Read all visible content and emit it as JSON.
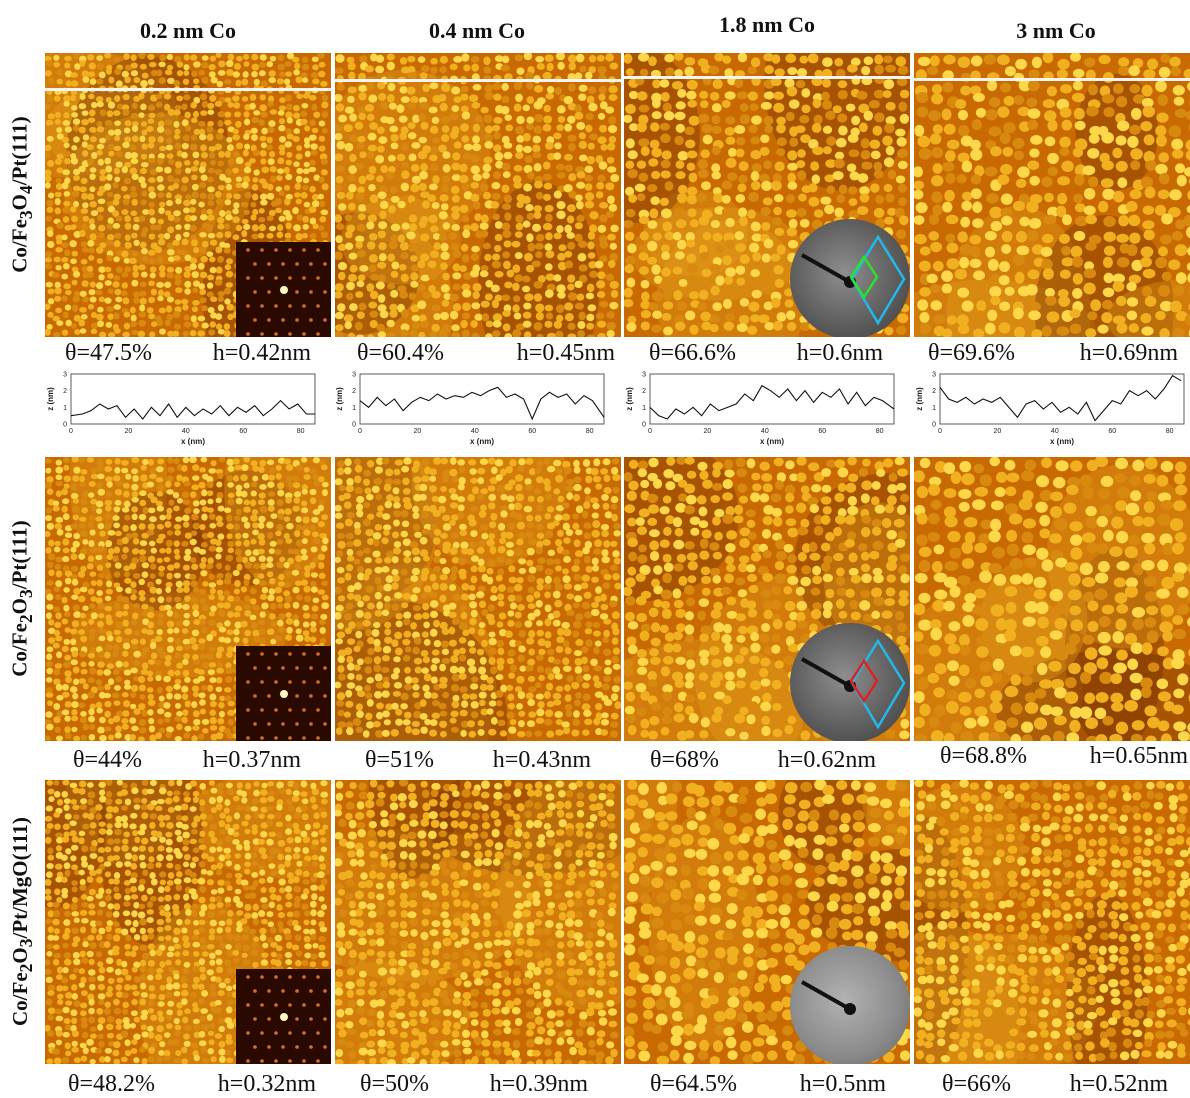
{
  "columns": [
    "0.2 nm Co",
    "0.4 nm Co",
    "1.8 nm Co",
    "3 nm Co"
  ],
  "rows": [
    {
      "label_main": "Co/Fe",
      "label_sub1": "3",
      "label_mid": "O",
      "label_sub2": "4",
      "label_end": "/Pt(111)",
      "captions": [
        [
          "θ=47.5%",
          "h=0.42nm"
        ],
        [
          "θ=60.4%",
          "h=0.45nm"
        ],
        [
          "θ=66.6%",
          "h=0.6nm"
        ],
        [
          "θ=69.6%",
          "h=0.69nm"
        ]
      ]
    },
    {
      "label_main": "Co/Fe",
      "label_sub1": "2",
      "label_mid": "O",
      "label_sub2": "3",
      "label_end": "/Pt(111)",
      "captions": [
        [
          "θ=44%",
          "h=0.37nm"
        ],
        [
          "θ=51%",
          "h=0.43nm"
        ],
        [
          "θ=68%",
          "h=0.62nm"
        ],
        [
          "θ=68.8%",
          "h=0.65nm"
        ]
      ]
    },
    {
      "label_main": "Co/Fe",
      "label_sub1": "2",
      "label_mid": "O",
      "label_sub2": "3",
      "label_end": "/Pt/MgO(111)",
      "captions": [
        [
          "θ=48.2%",
          "h=0.32nm"
        ],
        [
          "θ=50%",
          "h=0.39nm"
        ],
        [
          "θ=64.5%",
          "h=0.5nm"
        ],
        [
          "θ=66%",
          "h=0.52nm"
        ]
      ]
    }
  ],
  "colors": {
    "stm_dark": "#6b2800",
    "stm_mid": "#c86a00",
    "stm_light": "#ffd84a",
    "scan_line": "#f4f4f4",
    "unit_cell_cyan": "#22b8e8",
    "unit_cell_green": "#2ee02e",
    "unit_cell_red": "#e02020"
  },
  "chart_data": [
    {
      "type": "line",
      "xlabel": "x (nm)",
      "ylabel": "z (nm)",
      "xlim": [
        0,
        85
      ],
      "ylim": [
        0,
        3
      ],
      "xticks": [
        "0",
        "20",
        "40",
        "60",
        "80"
      ],
      "yticks": [
        "0",
        "1",
        "2",
        "3"
      ],
      "x": [
        0,
        4,
        7,
        10,
        13,
        16,
        19,
        22,
        25,
        28,
        31,
        34,
        37,
        40,
        43,
        46,
        49,
        52,
        55,
        58,
        61,
        64,
        67,
        70,
        73,
        76,
        79,
        82,
        85
      ],
      "y": [
        0.5,
        0.6,
        0.8,
        1.2,
        0.9,
        1.1,
        0.4,
        0.9,
        0.3,
        1.0,
        0.5,
        1.2,
        0.4,
        1.0,
        0.5,
        0.9,
        0.6,
        1.1,
        0.5,
        1.0,
        0.7,
        1.1,
        0.5,
        0.9,
        1.4,
        0.9,
        1.2,
        0.6,
        0.6
      ]
    },
    {
      "type": "line",
      "xlabel": "x (nm)",
      "ylabel": "z (nm)",
      "xlim": [
        0,
        85
      ],
      "ylim": [
        0,
        3
      ],
      "xticks": [
        "0",
        "20",
        "40",
        "60",
        "80"
      ],
      "yticks": [
        "0",
        "1",
        "2",
        "3"
      ],
      "x": [
        0,
        3,
        6,
        9,
        12,
        15,
        18,
        21,
        24,
        27,
        30,
        33,
        36,
        39,
        42,
        45,
        48,
        51,
        54,
        57,
        60,
        63,
        66,
        69,
        72,
        75,
        78,
        81,
        85
      ],
      "y": [
        1.4,
        1.0,
        1.6,
        1.1,
        1.5,
        0.8,
        1.3,
        1.6,
        1.4,
        1.8,
        1.5,
        1.7,
        1.6,
        1.9,
        1.7,
        2.0,
        2.2,
        1.6,
        1.8,
        1.5,
        0.3,
        1.5,
        1.9,
        1.6,
        1.8,
        1.2,
        1.7,
        1.4,
        0.4
      ]
    },
    {
      "type": "line",
      "xlabel": "x (nm)",
      "ylabel": "z (nm)",
      "xlim": [
        0,
        85
      ],
      "ylim": [
        0,
        3
      ],
      "xticks": [
        "0",
        "20",
        "40",
        "60",
        "80"
      ],
      "yticks": [
        "0",
        "1",
        "2",
        "3"
      ],
      "x": [
        0,
        3,
        6,
        9,
        12,
        15,
        18,
        21,
        24,
        27,
        30,
        33,
        36,
        39,
        42,
        45,
        48,
        51,
        54,
        57,
        60,
        63,
        66,
        69,
        72,
        75,
        78,
        81,
        85
      ],
      "y": [
        1.0,
        0.5,
        0.3,
        0.9,
        0.6,
        1.0,
        0.5,
        1.2,
        0.8,
        1.0,
        1.2,
        1.8,
        1.4,
        2.3,
        2.0,
        1.6,
        2.1,
        1.4,
        2.0,
        1.3,
        1.9,
        1.6,
        2.1,
        1.2,
        1.9,
        1.1,
        1.6,
        1.4,
        0.9
      ]
    },
    {
      "type": "line",
      "xlabel": "x (nm)",
      "ylabel": "z (nm)",
      "xlim": [
        0,
        85
      ],
      "ylim": [
        0,
        3
      ],
      "xticks": [
        "0",
        "20",
        "40",
        "60",
        "80"
      ],
      "yticks": [
        "0",
        "1",
        "2",
        "3"
      ],
      "x": [
        0,
        3,
        6,
        9,
        12,
        15,
        18,
        21,
        24,
        27,
        30,
        33,
        36,
        39,
        42,
        45,
        48,
        51,
        54,
        57,
        60,
        63,
        66,
        69,
        72,
        75,
        78,
        81,
        84
      ],
      "y": [
        2.2,
        1.5,
        1.3,
        1.6,
        1.2,
        1.5,
        1.3,
        1.6,
        1.0,
        0.4,
        1.2,
        1.4,
        0.9,
        1.3,
        0.7,
        1.0,
        0.6,
        1.3,
        0.2,
        0.8,
        1.4,
        1.2,
        2.0,
        1.7,
        2.0,
        1.5,
        2.1,
        2.9,
        2.6
      ]
    }
  ]
}
